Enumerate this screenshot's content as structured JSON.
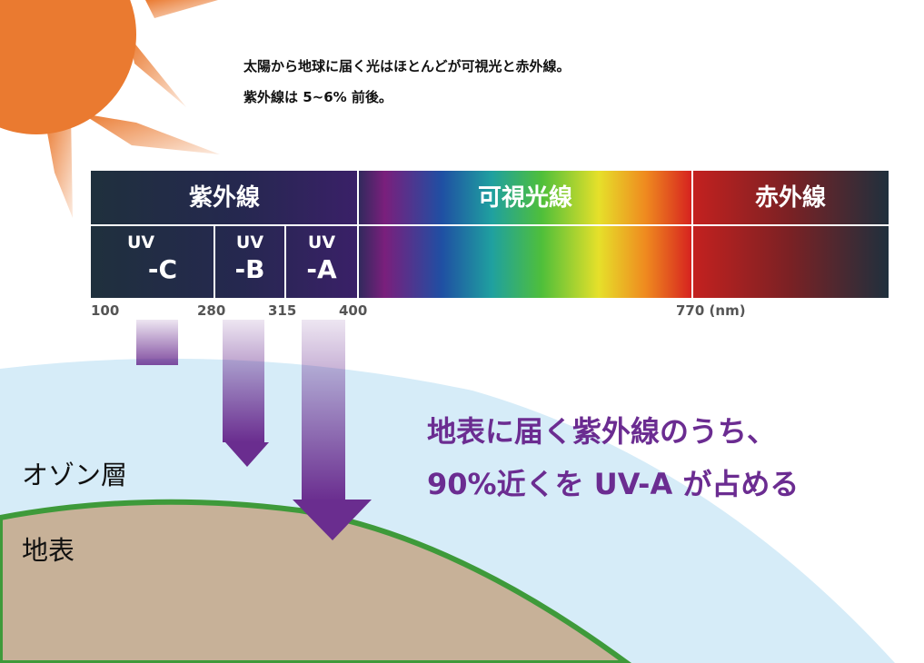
{
  "intro": {
    "line1": "太陽から地球に届く光はほとんどが可視光と赤外線。",
    "line2": "紫外線は 5~6% 前後。"
  },
  "spectrum": {
    "bands": {
      "uv": "紫外線",
      "visible": "可視光線",
      "infrared": "赤外線"
    },
    "uv_bands": {
      "uvc": {
        "top": "UV",
        "bottom": "-C"
      },
      "uvb": {
        "top": "UV",
        "bottom": "-B"
      },
      "uva": {
        "top": "UV",
        "bottom": "-A"
      }
    },
    "ticks": [
      "100",
      "280",
      "315",
      "400",
      "770 (nm)"
    ]
  },
  "labels": {
    "ozone": "オゾン層",
    "surface": "地表"
  },
  "headline": {
    "line1": "地表に届く紫外線のうち、",
    "line2": "90%近くを UV-A が占める"
  },
  "colors": {
    "sun": "#ea7a30",
    "panel_dark": "#1f303d",
    "ozone": "#d6ecf8",
    "ground": "#c7b198",
    "ground_edge": "#3e9a3a",
    "arrow": "#6a2d8f",
    "headline": "#6b2c91"
  }
}
